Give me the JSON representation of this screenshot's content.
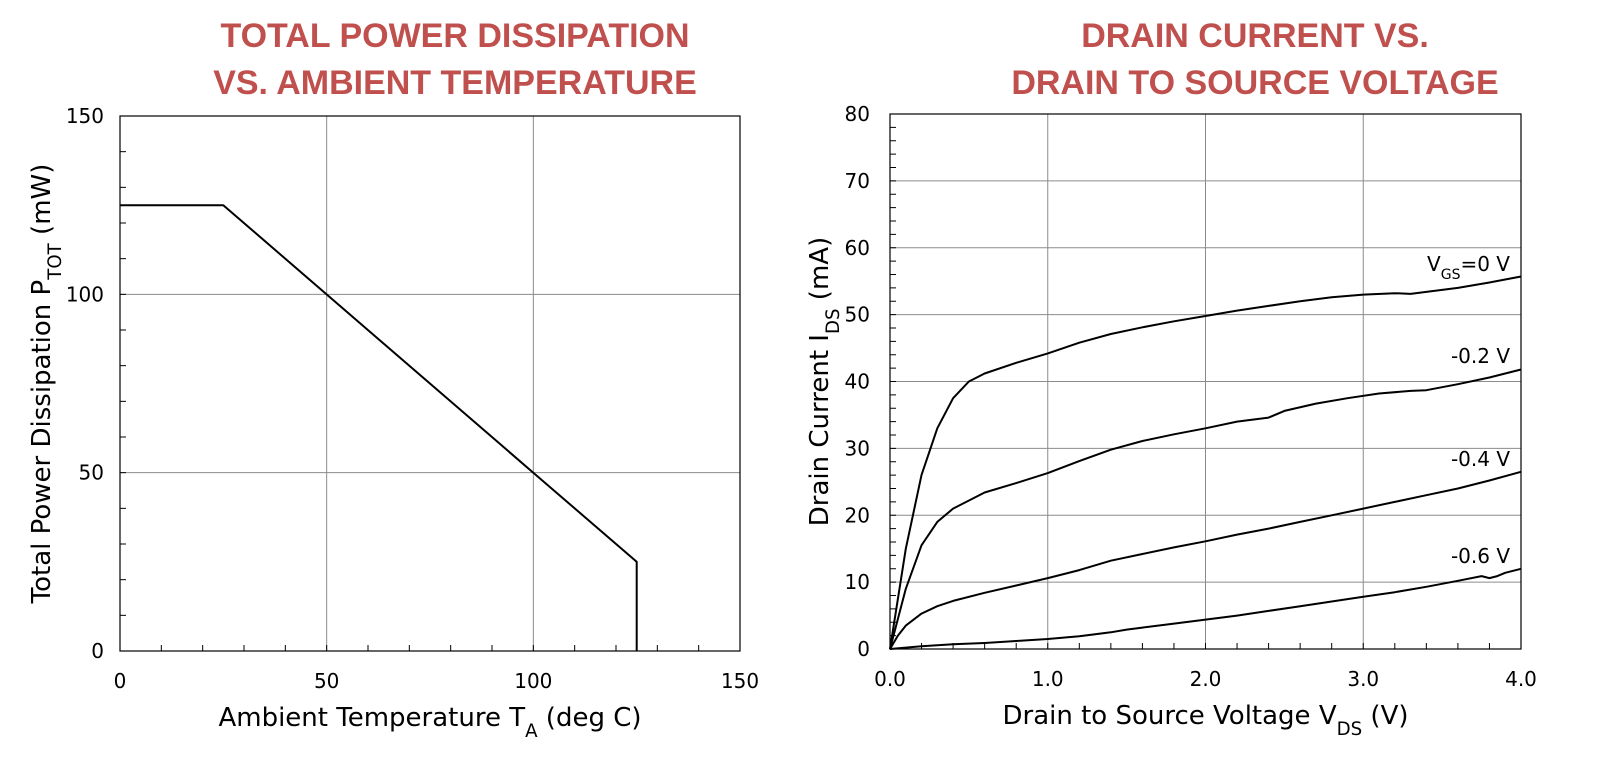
{
  "chart_data": [
    {
      "type": "line",
      "title_lines": [
        "TOTAL POWER DISSIPATION",
        "VS. AMBIENT TEMPERATURE"
      ],
      "xlabel": {
        "main": "Ambient Temperature T",
        "sub": "A",
        "suffix": " (deg C)"
      },
      "ylabel": {
        "main": "Total Power Dissipation P",
        "sub": "TOT",
        "suffix": " (mW)"
      },
      "xlim": [
        0,
        150
      ],
      "ylim": [
        0,
        150
      ],
      "x_ticks": [
        "0",
        "50",
        "100",
        "150"
      ],
      "y_ticks": [
        "0",
        "50",
        "100",
        "150"
      ],
      "x_minor_step": 10,
      "y_minor_step": 10,
      "grid": true,
      "series": [
        {
          "x": [
            0,
            25,
            100,
            125,
            125
          ],
          "y": [
            125,
            125,
            50,
            25,
            0
          ]
        }
      ]
    },
    {
      "type": "line",
      "title_lines": [
        "DRAIN CURRENT VS.",
        "DRAIN TO SOURCE VOLTAGE"
      ],
      "xlabel": {
        "main": "Drain to Source Voltage V",
        "sub": "DS",
        "suffix": " (V)"
      },
      "ylabel": {
        "main": "Drain Current I",
        "sub": "DS",
        "suffix": " (mA)"
      },
      "xlim": [
        0,
        4
      ],
      "ylim": [
        0,
        80
      ],
      "x_ticks": [
        "0.0",
        "1.0",
        "2.0",
        "3.0",
        "4.0"
      ],
      "y_ticks": [
        "0",
        "10",
        "20",
        "30",
        "40",
        "50",
        "60",
        "70",
        "80"
      ],
      "x_minor_step": 0.2,
      "y_minor_step": 2,
      "grid": true,
      "series": [
        {
          "name": "VGS=0 V",
          "label": {
            "main": "V",
            "sub": "GS",
            "suffix": "=0 V"
          },
          "x": [
            0,
            0.1,
            0.2,
            0.3,
            0.4,
            0.5,
            0.6,
            0.8,
            1.0,
            1.2,
            1.4,
            1.6,
            1.8,
            2.0,
            2.2,
            2.4,
            2.6,
            2.8,
            3.0,
            3.2,
            3.3,
            3.4,
            3.6,
            3.8,
            4.0
          ],
          "y": [
            0,
            15,
            26,
            33,
            37.5,
            40,
            41.2,
            42.8,
            44.2,
            45.8,
            47.1,
            48.1,
            49,
            49.8,
            50.6,
            51.3,
            52,
            52.6,
            53,
            53.2,
            53.1,
            53.4,
            54,
            54.8,
            55.7
          ]
        },
        {
          "name": "-0.2 V",
          "label": {
            "main": "-0.2 V",
            "sub": "",
            "suffix": ""
          },
          "x": [
            0,
            0.1,
            0.2,
            0.3,
            0.4,
            0.6,
            0.8,
            1.0,
            1.2,
            1.4,
            1.6,
            1.8,
            2.0,
            2.2,
            2.4,
            2.5,
            2.7,
            2.9,
            3.1,
            3.3,
            3.4,
            3.6,
            3.8,
            4.0
          ],
          "y": [
            0,
            9,
            15.5,
            19,
            21,
            23.4,
            24.8,
            26.3,
            28.1,
            29.8,
            31.1,
            32.1,
            33,
            34,
            34.6,
            35.6,
            36.7,
            37.5,
            38.2,
            38.6,
            38.7,
            39.6,
            40.6,
            41.8
          ]
        },
        {
          "name": "-0.4 V",
          "label": {
            "main": "-0.4 V",
            "sub": "",
            "suffix": ""
          },
          "x": [
            0,
            0.05,
            0.1,
            0.2,
            0.3,
            0.4,
            0.6,
            0.8,
            1.0,
            1.2,
            1.4,
            1.6,
            1.8,
            2.0,
            2.2,
            2.4,
            2.6,
            2.8,
            3.0,
            3.2,
            3.4,
            3.6,
            3.8,
            4.0
          ],
          "y": [
            0,
            2,
            3.5,
            5.3,
            6.4,
            7.2,
            8.4,
            9.5,
            10.6,
            11.8,
            13.2,
            14.2,
            15.2,
            16.1,
            17.1,
            18,
            19,
            20,
            21,
            22,
            23,
            24,
            25.2,
            26.5
          ]
        },
        {
          "name": "-0.6 V",
          "label": {
            "main": "-0.6 V",
            "sub": "",
            "suffix": ""
          },
          "x": [
            0,
            0.2,
            0.4,
            0.6,
            0.8,
            1.0,
            1.2,
            1.4,
            1.5,
            1.6,
            1.8,
            2.0,
            2.2,
            2.4,
            2.6,
            2.8,
            3.0,
            3.2,
            3.4,
            3.6,
            3.75,
            3.8,
            3.85,
            3.9,
            4.0
          ],
          "y": [
            0,
            0.4,
            0.7,
            0.9,
            1.2,
            1.5,
            1.9,
            2.5,
            2.9,
            3.2,
            3.8,
            4.4,
            5,
            5.7,
            6.4,
            7.1,
            7.8,
            8.5,
            9.3,
            10.2,
            10.9,
            10.6,
            10.9,
            11.4,
            12
          ]
        }
      ]
    }
  ]
}
